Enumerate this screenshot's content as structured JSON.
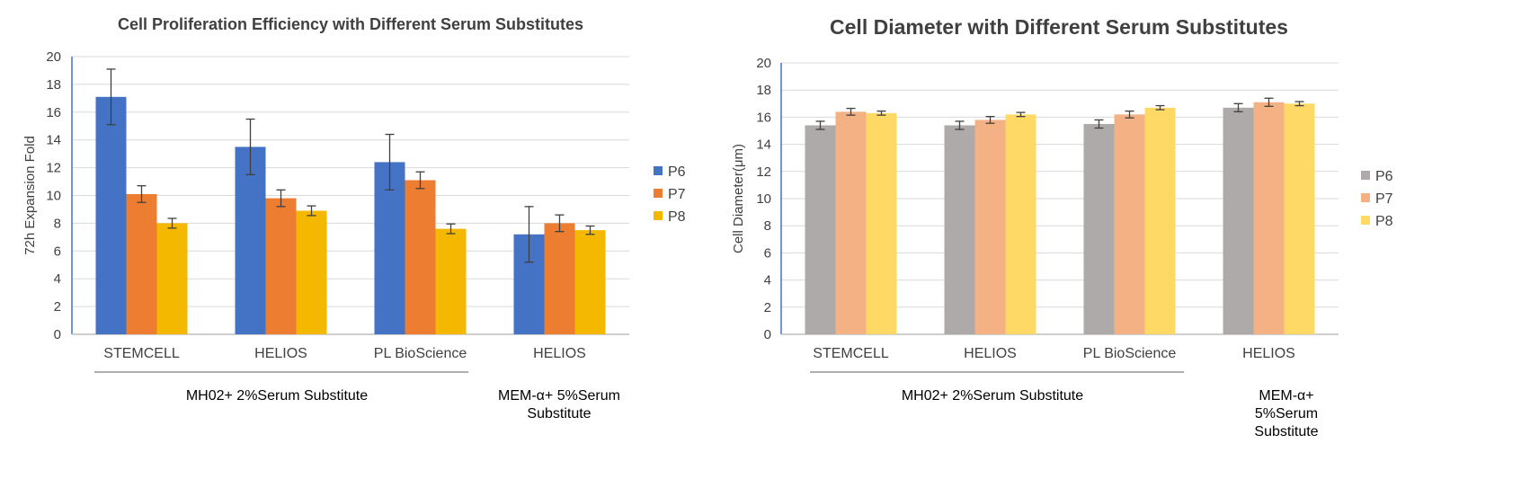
{
  "colors": {
    "left": {
      "P6": "#4472C4",
      "P7": "#ED7D31",
      "P8": "#F4B800"
    },
    "right": {
      "P6": "#ADAAA9",
      "P7": "#F4B183",
      "P8": "#FFD966"
    },
    "axis": "#4472C4",
    "grid": "#D9D9D9",
    "text": "#404040",
    "errorbar": "#404040"
  },
  "chart_data": [
    {
      "type": "bar",
      "title": "Cell Proliferation Efficiency with Different Serum Substitutes",
      "xlabel": "",
      "ylabel": "72h Expansion Fold",
      "ylim": [
        0,
        20
      ],
      "yticks": [
        0,
        2,
        4,
        6,
        8,
        10,
        12,
        14,
        16,
        18,
        20
      ],
      "grid": true,
      "legend": "right",
      "categories": [
        "STEMCELL",
        "HELIOS",
        "PL BioScience",
        "HELIOS"
      ],
      "groups": [
        {
          "label": "MH02+ 2%Serum Substitute",
          "span": [
            0,
            2
          ]
        },
        {
          "label": "MEM-α+ 5%Serum Substitute",
          "span": [
            3,
            3
          ]
        }
      ],
      "series": [
        {
          "name": "P6",
          "values": [
            17.1,
            13.5,
            12.4,
            7.2
          ],
          "errors": [
            2.0,
            2.0,
            2.0,
            2.0
          ]
        },
        {
          "name": "P7",
          "values": [
            10.1,
            9.8,
            11.1,
            8.0
          ],
          "errors": [
            0.6,
            0.6,
            0.6,
            0.6
          ]
        },
        {
          "name": "P8",
          "values": [
            8.0,
            8.9,
            7.6,
            7.5
          ],
          "errors": [
            0.35,
            0.35,
            0.35,
            0.3
          ]
        }
      ]
    },
    {
      "type": "bar",
      "title": "Cell Diameter with Different Serum Substitutes",
      "xlabel": "",
      "ylabel": "Cell Diameter(μm)",
      "ylim": [
        0,
        20
      ],
      "yticks": [
        0,
        2,
        4,
        6,
        8,
        10,
        12,
        14,
        16,
        18,
        20
      ],
      "grid": true,
      "legend": "right",
      "categories": [
        "STEMCELL",
        "HELIOS",
        "PL BioScience",
        "HELIOS"
      ],
      "groups": [
        {
          "label": "MH02+ 2%Serum Substitute",
          "span": [
            0,
            2
          ]
        },
        {
          "label": "MEM-α+ 5%Serum Substitute",
          "span": [
            3,
            3
          ]
        }
      ],
      "series": [
        {
          "name": "P6",
          "values": [
            15.4,
            15.4,
            15.5,
            16.7
          ],
          "errors": [
            0.3,
            0.3,
            0.3,
            0.3
          ]
        },
        {
          "name": "P7",
          "values": [
            16.4,
            15.8,
            16.2,
            17.1
          ],
          "errors": [
            0.25,
            0.25,
            0.25,
            0.3
          ]
        },
        {
          "name": "P8",
          "values": [
            16.3,
            16.2,
            16.7,
            17.0
          ],
          "errors": [
            0.15,
            0.15,
            0.15,
            0.15
          ]
        }
      ]
    }
  ]
}
